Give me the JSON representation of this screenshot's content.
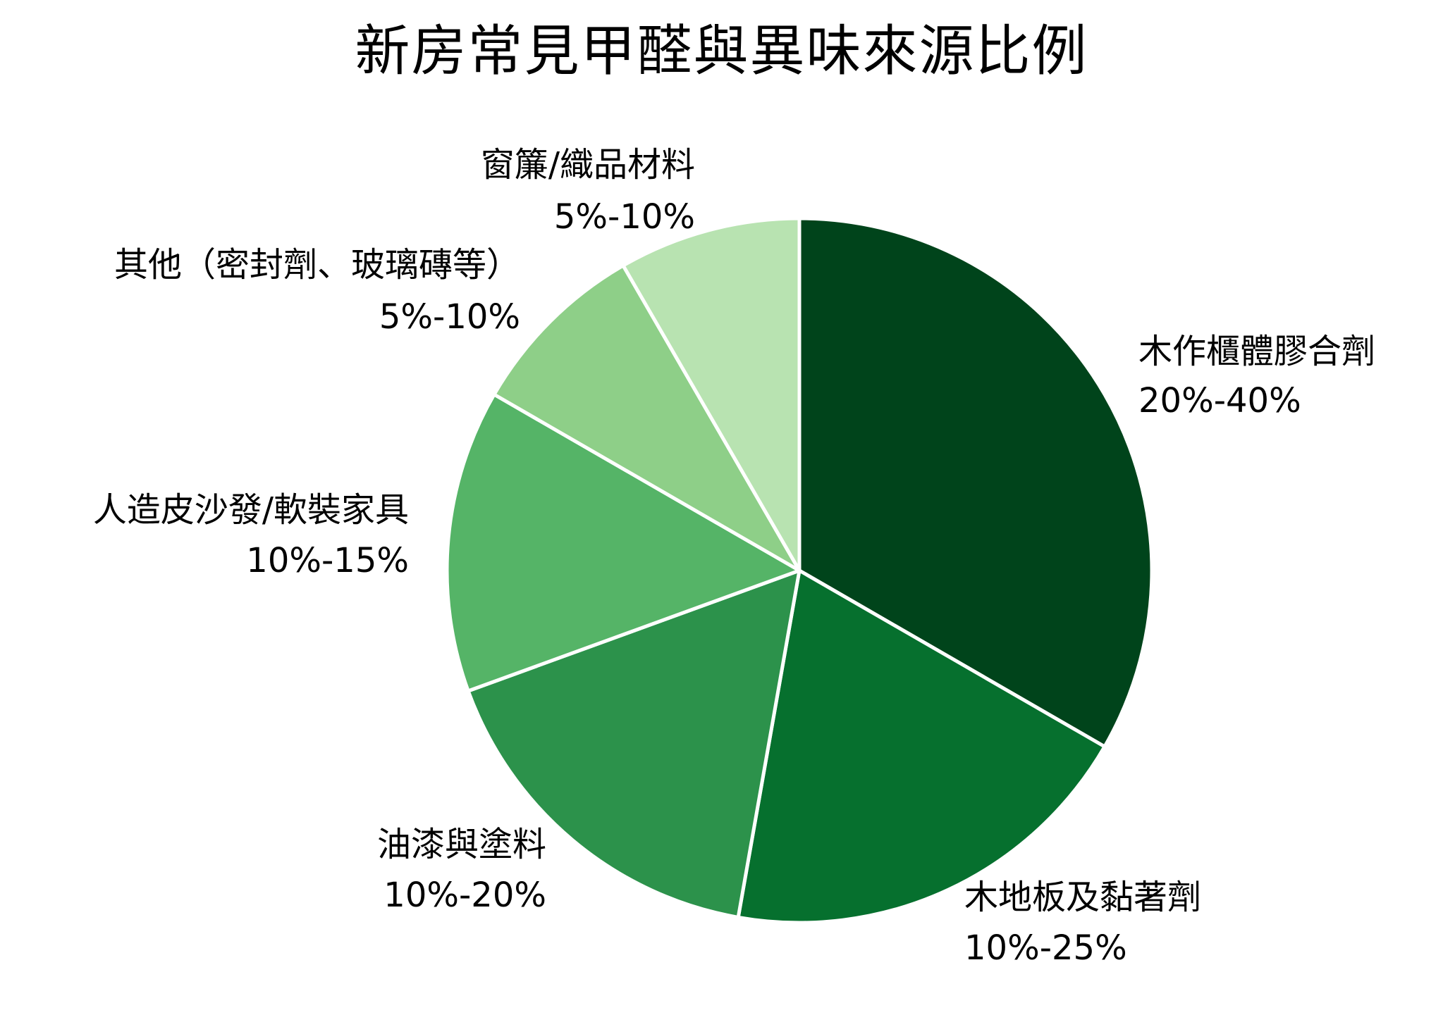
{
  "chart_data": {
    "type": "pie",
    "title": "新房常見甲醛與異味來源比例",
    "legend": "none",
    "slices": [
      {
        "name": "木作櫃體膠合劑",
        "range_label": "20%-40%",
        "value": 30,
        "color": "#00441b"
      },
      {
        "name": "木地板及黏著劑",
        "range_label": "10%-25%",
        "value": 17.5,
        "color": "#06702e"
      },
      {
        "name": "油漆與塗料",
        "range_label": "10%-20%",
        "value": 15,
        "color": "#2c924b"
      },
      {
        "name": "人造皮沙發/軟裝家具",
        "range_label": "10%-15%",
        "value": 12.5,
        "color": "#55b467"
      },
      {
        "name": "其他（密封劑、玻璃磚等）",
        "range_label": "5%-10%",
        "value": 7.5,
        "color": "#8ecf88"
      },
      {
        "name": "窗簾/織品材料",
        "range_label": "5%-10%",
        "value": 7.5,
        "color": "#b8e3b1"
      }
    ]
  }
}
